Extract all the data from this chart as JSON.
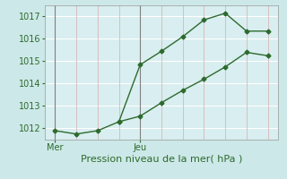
{
  "title": "Pression niveau de la mer( hPa )",
  "bg_color": "#cce8e8",
  "plot_bg_color": "#d8eef0",
  "grid_color": "#e8c8c8",
  "line_color": "#2d6a2d",
  "ylim": [
    1011.5,
    1017.5
  ],
  "yticks": [
    1012,
    1013,
    1014,
    1015,
    1016,
    1017
  ],
  "series1_x": [
    0,
    1,
    2,
    3,
    4,
    5,
    6,
    7,
    8,
    9,
    10
  ],
  "series1_y": [
    1011.9,
    1011.75,
    1011.9,
    1012.3,
    1014.85,
    1015.45,
    1016.1,
    1016.85,
    1017.15,
    1016.35,
    1016.35
  ],
  "series2_x": [
    3,
    4,
    5,
    6,
    7,
    8,
    9,
    10
  ],
  "series2_y": [
    1012.3,
    1012.55,
    1013.15,
    1013.7,
    1014.2,
    1014.75,
    1015.4,
    1015.25
  ],
  "num_cols": 11,
  "mer_col": 0,
  "jeu_col": 4,
  "vline_mer": 0,
  "vline_jeu": 4,
  "xtick_positions": [
    0,
    4
  ],
  "xtick_labels": [
    "Mer",
    "Jeu"
  ],
  "title_fontsize": 8,
  "tick_fontsize": 7
}
